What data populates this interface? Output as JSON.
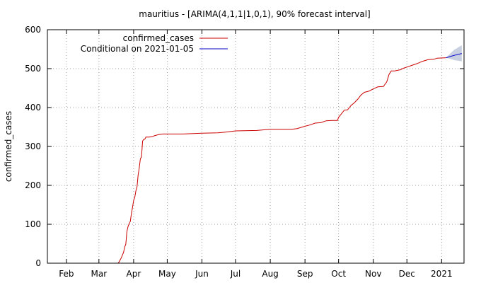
{
  "chart_data": {
    "type": "line",
    "title": "mauritius -  [ARIMA(4,1,1|1,0,1), 90% forecast interval]",
    "xlabel": "",
    "ylabel": "confirmed_cases",
    "ylim": [
      0,
      600
    ],
    "y_ticks": [
      "0",
      "100",
      "200",
      "300",
      "400",
      "500",
      "600"
    ],
    "x_ticks": [
      "Feb",
      "Mar",
      "Apr",
      "May",
      "Jun",
      "Jul",
      "Aug",
      "Sep",
      "Oct",
      "Nov",
      "Dec",
      "2021"
    ],
    "x_tick_dates": [
      "2020-02-01",
      "2020-03-01",
      "2020-04-01",
      "2020-05-01",
      "2020-06-01",
      "2020-07-01",
      "2020-08-01",
      "2020-09-01",
      "2020-10-01",
      "2020-11-01",
      "2020-12-01",
      "2021-01-01"
    ],
    "xlim": [
      "2020-01-15",
      "2021-01-21"
    ],
    "grid": true,
    "legend_position": "top-left",
    "series": [
      {
        "name": "confirmed_cases",
        "color": "#cc0000",
        "points": [
          [
            "2020-03-18",
            0
          ],
          [
            "2020-03-19",
            3
          ],
          [
            "2020-03-21",
            14
          ],
          [
            "2020-03-23",
            28
          ],
          [
            "2020-03-24",
            42
          ],
          [
            "2020-03-25",
            48
          ],
          [
            "2020-03-26",
            81
          ],
          [
            "2020-03-27",
            94
          ],
          [
            "2020-03-28",
            102
          ],
          [
            "2020-03-29",
            107
          ],
          [
            "2020-03-30",
            128
          ],
          [
            "2020-03-31",
            143
          ],
          [
            "2020-04-01",
            161
          ],
          [
            "2020-04-02",
            169
          ],
          [
            "2020-04-03",
            186
          ],
          [
            "2020-04-04",
            196
          ],
          [
            "2020-04-05",
            227
          ],
          [
            "2020-04-06",
            244
          ],
          [
            "2020-04-07",
            268
          ],
          [
            "2020-04-08",
            273
          ],
          [
            "2020-04-09",
            314
          ],
          [
            "2020-04-10",
            318
          ],
          [
            "2020-04-11",
            319
          ],
          [
            "2020-04-12",
            324
          ],
          [
            "2020-04-15",
            324
          ],
          [
            "2020-04-17",
            325
          ],
          [
            "2020-04-20",
            328
          ],
          [
            "2020-04-24",
            331
          ],
          [
            "2020-04-27",
            332
          ],
          [
            "2020-05-01",
            332
          ],
          [
            "2020-05-15",
            332
          ],
          [
            "2020-06-01",
            334
          ],
          [
            "2020-06-15",
            335
          ],
          [
            "2020-06-22",
            337
          ],
          [
            "2020-07-01",
            340
          ],
          [
            "2020-07-20",
            341
          ],
          [
            "2020-08-01",
            344
          ],
          [
            "2020-08-20",
            344
          ],
          [
            "2020-08-25",
            346
          ],
          [
            "2020-09-01",
            352
          ],
          [
            "2020-09-05",
            355
          ],
          [
            "2020-09-10",
            360
          ],
          [
            "2020-09-15",
            361
          ],
          [
            "2020-09-20",
            366
          ],
          [
            "2020-09-25",
            367
          ],
          [
            "2020-09-30",
            367
          ],
          [
            "2020-10-01",
            375
          ],
          [
            "2020-10-03",
            382
          ],
          [
            "2020-10-06",
            393
          ],
          [
            "2020-10-09",
            394
          ],
          [
            "2020-10-12",
            405
          ],
          [
            "2020-10-15",
            412
          ],
          [
            "2020-10-18",
            421
          ],
          [
            "2020-10-21",
            432
          ],
          [
            "2020-10-24",
            439
          ],
          [
            "2020-10-28",
            442
          ],
          [
            "2020-11-01",
            448
          ],
          [
            "2020-11-05",
            453
          ],
          [
            "2020-11-10",
            454
          ],
          [
            "2020-11-13",
            466
          ],
          [
            "2020-11-15",
            485
          ],
          [
            "2020-11-17",
            494
          ],
          [
            "2020-11-20",
            494
          ],
          [
            "2020-11-25",
            497
          ],
          [
            "2020-11-28",
            501
          ],
          [
            "2020-12-01",
            504
          ],
          [
            "2020-12-05",
            508
          ],
          [
            "2020-12-10",
            513
          ],
          [
            "2020-12-15",
            519
          ],
          [
            "2020-12-20",
            523
          ],
          [
            "2020-12-25",
            524
          ],
          [
            "2020-12-28",
            527
          ],
          [
            "2021-01-05",
            528
          ]
        ]
      },
      {
        "name": "Conditional on 2021-01-05",
        "color": "#0000cc",
        "points": [
          [
            "2021-01-05",
            528
          ],
          [
            "2021-01-12",
            534
          ],
          [
            "2021-01-19",
            539
          ]
        ]
      }
    ],
    "forecast_interval": {
      "level": "90%",
      "color": "#c8cfe0",
      "upper": [
        [
          "2021-01-05",
          528
        ],
        [
          "2021-01-12",
          548
        ],
        [
          "2021-01-19",
          560
        ]
      ],
      "lower": [
        [
          "2021-01-19",
          519
        ],
        [
          "2021-01-12",
          522
        ],
        [
          "2021-01-05",
          528
        ]
      ]
    }
  }
}
